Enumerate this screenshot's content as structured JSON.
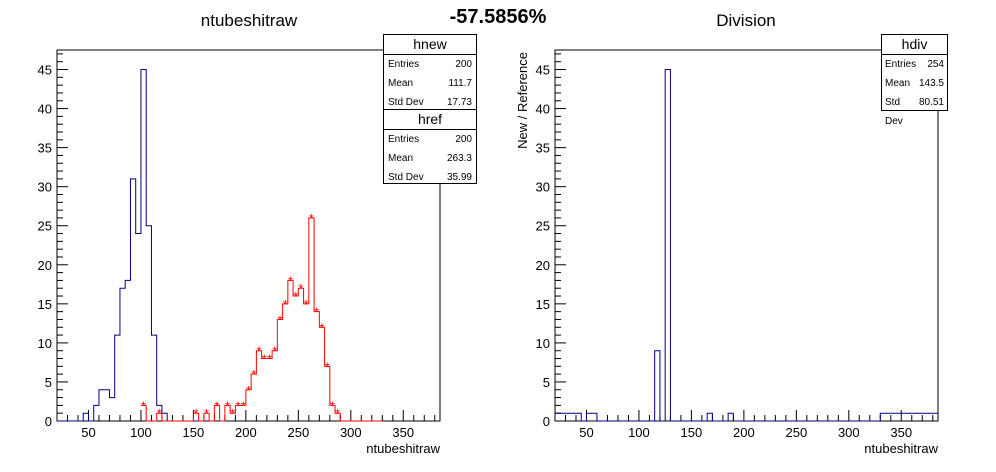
{
  "headline": "-57.5856%",
  "chart_data": [
    {
      "type": "histogram",
      "title": "ntubeshitraw",
      "xlabel": "ntubeshitraw",
      "ylabel": "",
      "xlim": [
        20,
        385
      ],
      "ylim": [
        0,
        47.5
      ],
      "xticks": [
        50,
        100,
        150,
        200,
        250,
        300,
        350
      ],
      "yticks": [
        0,
        5,
        10,
        15,
        20,
        25,
        30,
        35,
        40,
        45
      ],
      "bin_width": 5,
      "series": [
        {
          "name": "hnew",
          "color": "#000080",
          "style": "step",
          "bin_lo": [
            20,
            25,
            30,
            35,
            40,
            45,
            50,
            55,
            60,
            65,
            70,
            75,
            80,
            85,
            90,
            95,
            100,
            105,
            110,
            115,
            120,
            125,
            130,
            135,
            140,
            145,
            150,
            155
          ],
          "values": [
            0,
            0,
            0,
            0,
            0,
            1,
            0,
            2,
            4,
            4,
            3,
            11,
            17,
            18,
            31,
            24,
            45,
            25,
            11,
            2,
            1,
            0,
            0,
            0,
            0,
            0,
            0,
            0
          ]
        },
        {
          "name": "href",
          "color": "#ff0000",
          "style": "step+markers",
          "bin_lo": [
            100,
            105,
            110,
            115,
            120,
            125,
            130,
            135,
            140,
            145,
            150,
            155,
            160,
            165,
            170,
            175,
            180,
            185,
            190,
            195,
            200,
            205,
            210,
            215,
            220,
            225,
            230,
            235,
            240,
            245,
            250,
            255,
            260,
            265,
            270,
            275,
            280,
            285,
            290,
            295,
            300,
            305,
            310,
            315,
            320,
            325
          ],
          "values": [
            2,
            0,
            0,
            1,
            0,
            0,
            0,
            0,
            0,
            0,
            1,
            0,
            1,
            0,
            2,
            0,
            2,
            1,
            2,
            2,
            4,
            6,
            9,
            8,
            8,
            9,
            13,
            15,
            18,
            16,
            17,
            15,
            26,
            14,
            12,
            7,
            2,
            1,
            0,
            0,
            0,
            0,
            0,
            0,
            0,
            0
          ]
        }
      ],
      "stats": [
        {
          "name": "hnew",
          "rows": [
            {
              "label": "Entries",
              "value": "200"
            },
            {
              "label": "Mean",
              "value": "111.7"
            },
            {
              "label": "Std Dev",
              "value": "17.73"
            }
          ]
        },
        {
          "name": "href",
          "rows": [
            {
              "label": "Entries",
              "value": "200"
            },
            {
              "label": "Mean",
              "value": "263.3"
            },
            {
              "label": "Std Dev",
              "value": "35.99"
            }
          ]
        }
      ]
    },
    {
      "type": "histogram",
      "title": "Division",
      "xlabel": "ntubeshitraw",
      "ylabel": "New / Reference",
      "xlim": [
        20,
        385
      ],
      "ylim": [
        0,
        47.5
      ],
      "xticks": [
        50,
        100,
        150,
        200,
        250,
        300,
        350
      ],
      "yticks": [
        0,
        5,
        10,
        15,
        20,
        25,
        30,
        35,
        40,
        45
      ],
      "bin_width": 5,
      "series": [
        {
          "name": "hdiv",
          "color": "#000080",
          "style": "step",
          "bin_lo": [
            20,
            25,
            30,
            35,
            40,
            45,
            50,
            55,
            60,
            65,
            70,
            75,
            80,
            85,
            90,
            95,
            100,
            105,
            110,
            115,
            120,
            125,
            130,
            135,
            140,
            145,
            150,
            155,
            160,
            165,
            170,
            175,
            180,
            185,
            190,
            195,
            200,
            205,
            210,
            215,
            220,
            225,
            230,
            235,
            240,
            245,
            250,
            255,
            260,
            265,
            270,
            275,
            280,
            285,
            290,
            295,
            300,
            305,
            310,
            315,
            320,
            325,
            330,
            335,
            340,
            345,
            350,
            355,
            360,
            365,
            370,
            375,
            380
          ],
          "values": [
            1,
            1,
            1,
            1,
            1,
            0,
            1,
            1,
            0,
            0,
            0,
            0,
            0,
            0,
            0,
            0,
            0,
            0,
            0,
            9,
            0,
            45,
            0,
            0,
            0,
            0,
            0,
            0,
            0,
            1,
            0,
            0,
            0,
            1,
            0,
            0,
            0,
            0,
            0,
            0,
            0,
            0,
            0,
            0,
            0,
            0,
            0,
            0,
            0,
            0,
            0,
            0,
            0,
            0,
            0,
            0,
            0,
            0,
            0,
            0,
            0,
            0,
            1,
            1,
            1,
            1,
            1,
            1,
            1,
            1,
            1,
            1,
            1
          ]
        }
      ],
      "stats": [
        {
          "name": "hdiv",
          "rows": [
            {
              "label": "Entries",
              "value": "254"
            },
            {
              "label": "Mean",
              "value": "143.5"
            },
            {
              "label": "Std Dev",
              "value": "80.51"
            }
          ]
        }
      ]
    }
  ]
}
